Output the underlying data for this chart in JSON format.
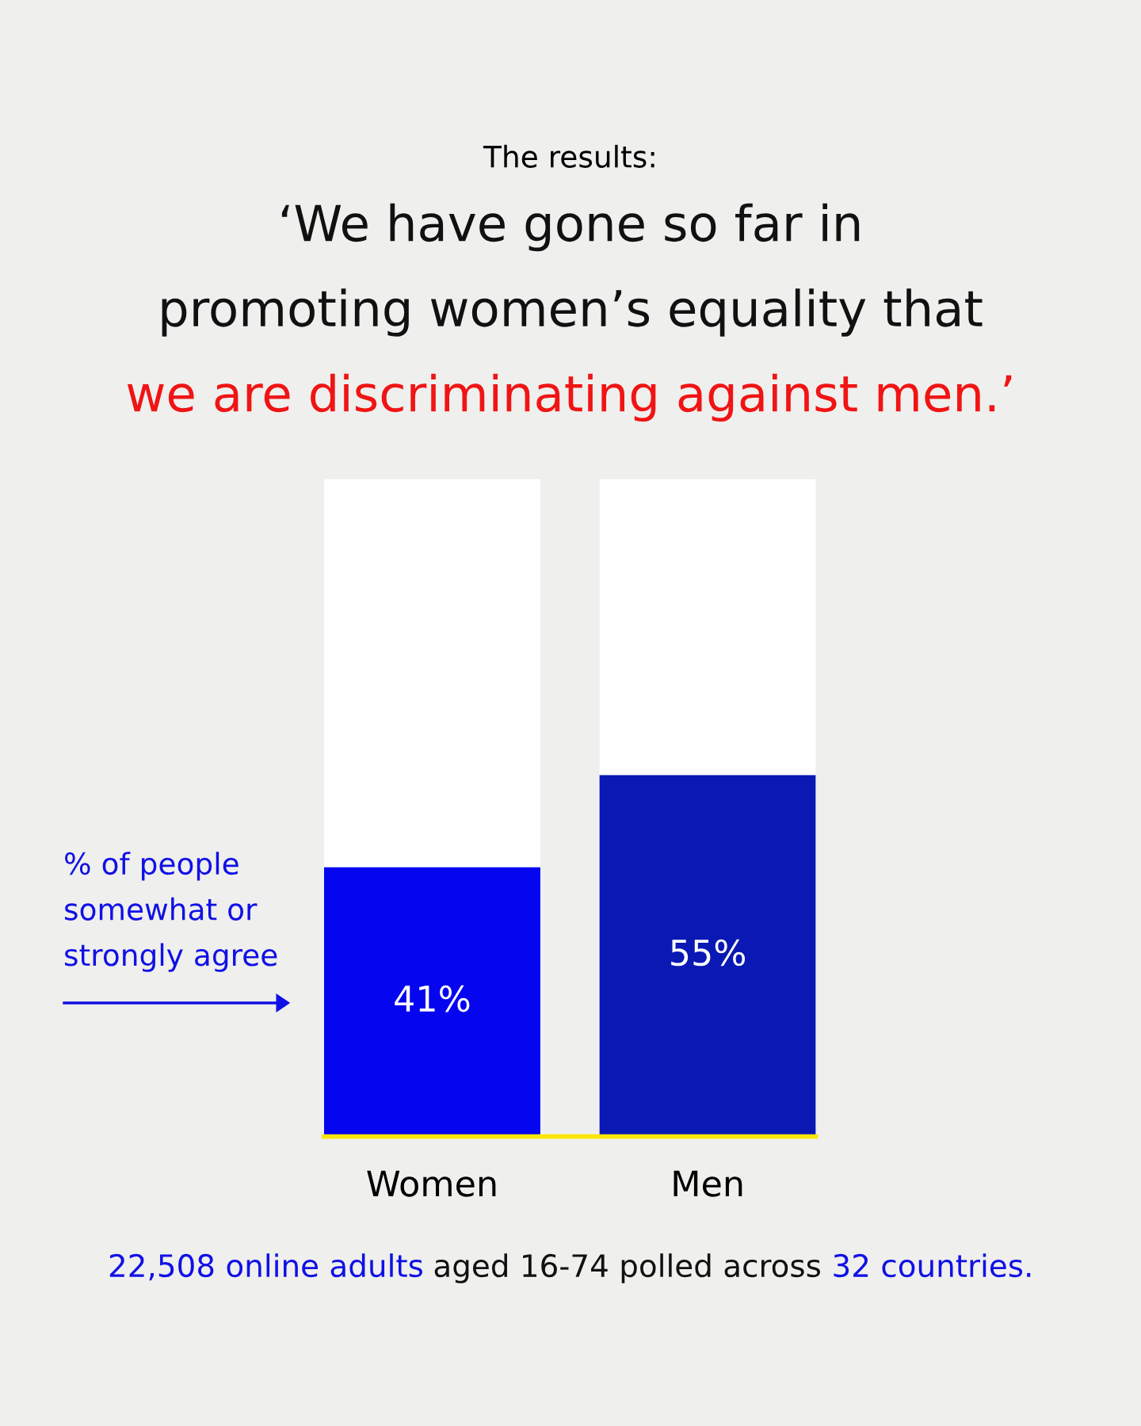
{
  "chart_data": {
    "type": "bar",
    "title": "The results:",
    "subtitle": "‘We have gone so far in\npromoting women’s equality that\nwe are discriminating against men.’",
    "categories": [
      "Women",
      "Men"
    ],
    "stacked": true,
    "series": [
      {
        "colors": [
          "#0505f0",
          "#0a18b4"
        ],
        "values": [
          41,
          55
        ],
        "value_labels": [
          "41%",
          "55%"
        ]
      },
      {
        "color": "#ffffff",
        "values": [
          59,
          45
        ]
      }
    ],
    "ylim": [
      0,
      100
    ],
    "tick_labels": "x",
    "grid": false,
    "annotations": [
      "% of people\nsomewhat or\nstrongly agree",
      "22,508 online adults",
      " aged 16-74 polled across ",
      "32 countries."
    ]
  }
}
